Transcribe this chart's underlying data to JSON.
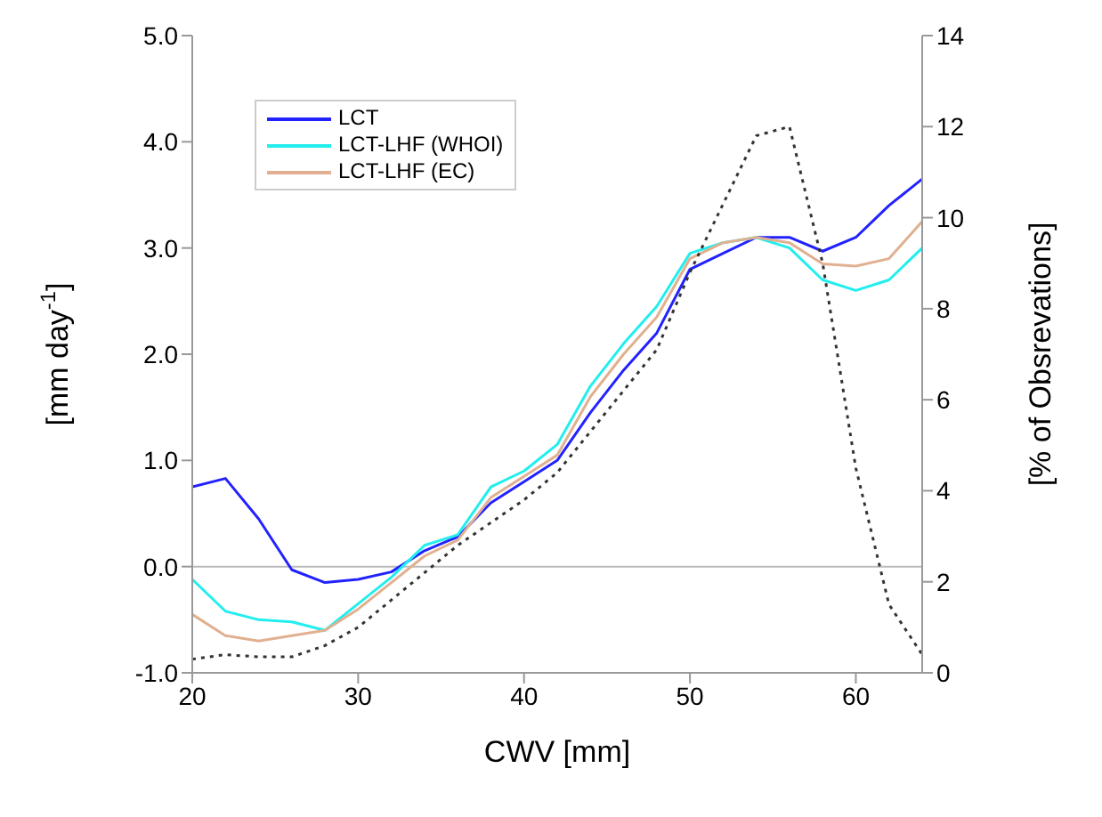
{
  "chart_data": {
    "type": "line",
    "xlabel": "CWV [mm]",
    "ylabel": "[mm day$^{-1}$]",
    "y2label": "[% of Obsrevations]",
    "x": [
      20,
      22,
      24,
      26,
      28,
      30,
      32,
      34,
      36,
      38,
      40,
      42,
      44,
      46,
      48,
      50,
      52,
      54,
      56,
      58,
      60,
      62,
      64
    ],
    "xlim": [
      20,
      64
    ],
    "xticks": [
      20,
      30,
      40,
      50,
      60
    ],
    "ylim": [
      -1,
      5
    ],
    "yticks": [
      {
        "value": -1,
        "label": "-1.0"
      },
      {
        "value": 0,
        "label": "0.0"
      },
      {
        "value": 1,
        "label": "1.0"
      },
      {
        "value": 2,
        "label": "2.0"
      },
      {
        "value": 3,
        "label": "3.0"
      },
      {
        "value": 4,
        "label": "4.0"
      },
      {
        "value": 5,
        "label": "5.0"
      }
    ],
    "y2lim": [
      0,
      14
    ],
    "y2ticks": [
      0,
      2,
      4,
      6,
      8,
      10,
      12,
      14
    ],
    "series": [
      {
        "name": "LCT",
        "color": "#2222ff",
        "values": [
          0.75,
          0.83,
          0.45,
          -0.03,
          -0.15,
          -0.12,
          -0.05,
          0.15,
          0.28,
          0.6,
          0.8,
          1.0,
          1.45,
          1.85,
          2.2,
          2.8,
          2.95,
          3.1,
          3.1,
          2.97,
          3.1,
          3.4,
          3.65
        ]
      },
      {
        "name": "LCT-LHF (WHOI)",
        "color": "#22eeee",
        "values": [
          -0.12,
          -0.42,
          -0.5,
          -0.52,
          -0.6,
          -0.35,
          -0.1,
          0.2,
          0.3,
          0.75,
          0.9,
          1.15,
          1.7,
          2.1,
          2.45,
          2.95,
          3.05,
          3.1,
          3.0,
          2.7,
          2.6,
          2.7,
          3.0
        ]
      },
      {
        "name": "LCT-LHF (EC)",
        "color": "#e0b090",
        "values": [
          -0.45,
          -0.65,
          -0.7,
          -0.65,
          -0.6,
          -0.4,
          -0.15,
          0.1,
          0.25,
          0.65,
          0.85,
          1.05,
          1.6,
          2.0,
          2.35,
          2.9,
          3.05,
          3.1,
          3.05,
          2.85,
          2.83,
          2.9,
          3.25
        ]
      },
      {
        "color": "#333333",
        "axis": "y2",
        "line_style": "dotted",
        "values": [
          0.3,
          0.4,
          0.35,
          0.35,
          0.6,
          1.0,
          1.6,
          2.2,
          2.8,
          3.3,
          3.8,
          4.4,
          5.3,
          6.2,
          7.1,
          8.8,
          10.3,
          11.8,
          12.0,
          9.0,
          4.5,
          1.5,
          0.4
        ]
      }
    ],
    "ref_lines": [
      {
        "axis": "y",
        "value": 0,
        "color": "#bbbbbb"
      }
    ],
    "legend": "top left",
    "marker": "none"
  }
}
